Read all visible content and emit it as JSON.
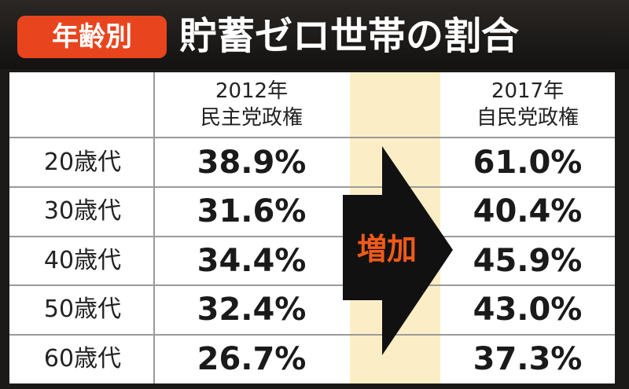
{
  "header": {
    "tag": "年齢別",
    "title": "貯蓄ゼロ世帯の割合"
  },
  "table": {
    "columns": [
      {
        "year": "2012年",
        "label": "民主党政権"
      },
      {
        "year": "2017年",
        "label": "自民党政権"
      }
    ],
    "rows": [
      {
        "age": "20歳代",
        "values": [
          "38.9%",
          "61.0%"
        ]
      },
      {
        "age": "30歳代",
        "values": [
          "31.6%",
          "40.4%"
        ]
      },
      {
        "age": "40歳代",
        "values": [
          "34.4%",
          "45.9%"
        ]
      },
      {
        "age": "50歳代",
        "values": [
          "32.4%",
          "43.0%"
        ]
      },
      {
        "age": "60歳代",
        "values": [
          "26.7%",
          "37.3%"
        ]
      }
    ]
  },
  "arrow_label": "増加"
}
